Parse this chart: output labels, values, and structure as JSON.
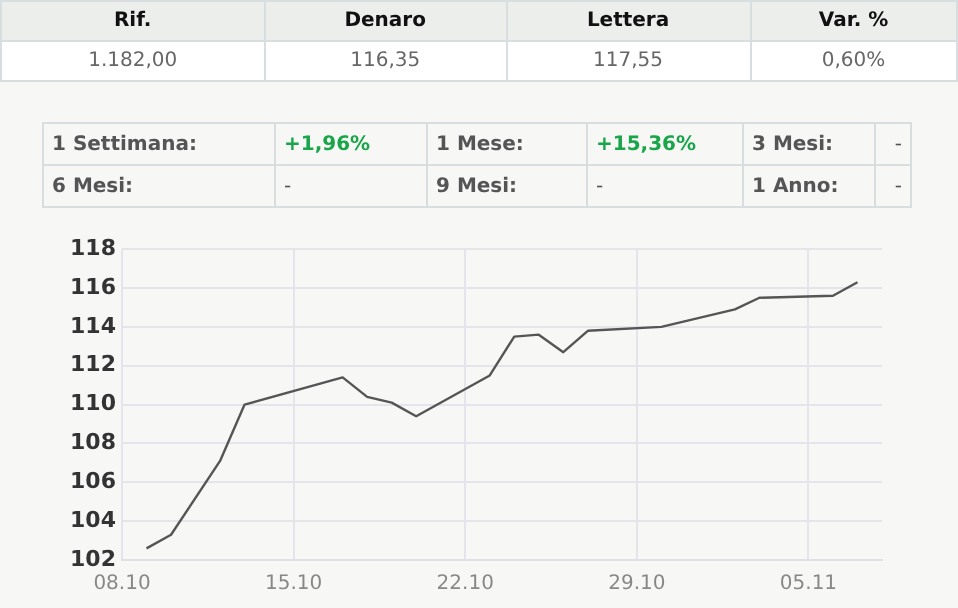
{
  "chart_data": {
    "type": "line",
    "annotations": [
      "Rif.",
      "Denaro",
      "Lettera",
      "Var. %",
      "1.182,00",
      "116,35",
      "117,55",
      "0,60%",
      "1 Settimana:",
      "+1,96%",
      "1 Mese:",
      "+15,36%",
      "3 Mesi:",
      "-",
      "6 Mesi:",
      "-",
      "9 Mesi:",
      "-",
      "1 Anno:",
      "-"
    ],
    "x": [
      "--10-09",
      "--10-10",
      "--10-12",
      "--10-13",
      "--10-17",
      "--10-18",
      "--10-19",
      "--10-20",
      "--10-23",
      "--10-24",
      "--10-25",
      "--10-26",
      "--10-27",
      "--10-30",
      "--11-02",
      "--11-03",
      "--11-06",
      "--11-07"
    ],
    "series": [
      {
        "color": "#555555",
        "values": [
          102.6,
          103.3,
          107.1,
          110.0,
          111.4,
          110.4,
          110.1,
          109.4,
          111.5,
          113.5,
          113.6,
          112.7,
          113.8,
          114.0,
          114.9,
          115.5,
          115.6,
          116.3
        ]
      }
    ],
    "xlim": [
      "--10-08",
      "--11-08"
    ],
    "xticks": [
      {
        "value": "--10-08",
        "label": "08.10"
      },
      {
        "value": "--10-15",
        "label": "15.10"
      },
      {
        "value": "--10-22",
        "label": "22.10"
      },
      {
        "value": "--10-29",
        "label": "29.10"
      },
      {
        "value": "--11-05",
        "label": "05.11"
      }
    ],
    "ylim": [
      102,
      118
    ],
    "yticks": [
      102,
      104,
      106,
      108,
      110,
      112,
      114,
      116,
      118
    ],
    "grid": true,
    "marker": "none",
    "line_style": "solid"
  }
}
